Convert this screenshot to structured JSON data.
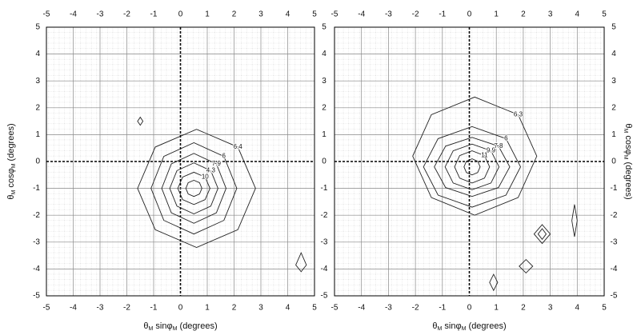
{
  "chart_data": [
    {
      "type": "contour",
      "xlim": [
        -5,
        5
      ],
      "ylim": [
        -5,
        5
      ],
      "xticks": [
        -5,
        -4,
        -3,
        -2,
        -1,
        0,
        1,
        2,
        3,
        4,
        5
      ],
      "yticks": [
        -5,
        -4,
        -3,
        -2,
        -1,
        0,
        1,
        2,
        3,
        4,
        5
      ],
      "x_label": [
        "θ",
        "M",
        " sinφ",
        "M",
        " (degrees)"
      ],
      "y_label": [
        "θ",
        "M",
        " cosφ",
        "M",
        " (degrees)"
      ],
      "grid": true,
      "color": "#222222",
      "contours": [
        {
          "x": [
            0.8,
            0.71,
            0.5,
            0.29,
            0.2,
            0.29,
            0.5,
            0.71
          ],
          "y": [
            -1,
            -0.79,
            -0.7,
            -0.79,
            -1,
            -1.21,
            -1.3,
            -1.21
          ]
        },
        {
          "x": [
            1.1,
            0.92,
            0.5,
            0.08,
            -0.1,
            0.08,
            0.5,
            0.92
          ],
          "y": [
            -1,
            -0.58,
            -0.4,
            -0.58,
            -1,
            -1.42,
            -1.6,
            -1.42
          ],
          "level": 10
        },
        {
          "x": [
            1.4,
            1.13,
            0.5,
            -0.13,
            -0.4,
            -0.13,
            0.5,
            1.13
          ],
          "y": [
            -1,
            -0.34,
            -0.05,
            -0.34,
            -1,
            -1.66,
            -1.95,
            -1.66
          ],
          "level": 4.3
        },
        {
          "x": [
            1.7,
            1.34,
            0.5,
            -0.34,
            -0.7,
            -0.34,
            0.5,
            1.34
          ],
          "y": [
            -1,
            -0.09,
            0.3,
            -0.09,
            -1,
            -1.91,
            -2.3,
            -1.91
          ],
          "level": 7.9
        },
        {
          "x": [
            2.1,
            1.62,
            0.5,
            -0.62,
            -1.1,
            -0.62,
            0.5,
            1.62
          ],
          "y": [
            -1,
            0.19,
            0.7,
            0.19,
            -1,
            -2.19,
            -2.7,
            -2.19
          ],
          "level": 6.0
        },
        {
          "x": [
            2.8,
            2.14,
            0.6,
            -0.94,
            -1.6,
            -0.94,
            0.6,
            2.14
          ],
          "y": [
            -1,
            0.54,
            1.2,
            0.54,
            -1,
            -2.54,
            -3.2,
            -2.54
          ],
          "level": 6.4
        },
        {
          "x": [
            -1.6,
            -1.5,
            -1.4,
            -1.5
          ],
          "y": [
            1.5,
            1.65,
            1.5,
            1.35
          ]
        },
        {
          "x": [
            4.3,
            4.5,
            4.7,
            4.5
          ],
          "y": [
            -3.85,
            -3.4,
            -3.85,
            -4.1
          ]
        }
      ]
    },
    {
      "type": "contour",
      "xlim": [
        -5,
        5
      ],
      "ylim": [
        -5,
        5
      ],
      "xticks": [
        -5,
        -4,
        -3,
        -2,
        -1,
        0,
        1,
        2,
        3,
        4,
        5
      ],
      "yticks": [
        -5,
        -4,
        -3,
        -2,
        -1,
        0,
        1,
        2,
        3,
        4,
        5
      ],
      "x_label": [
        "θ",
        "M",
        " sinφ",
        "M",
        " (degrees)"
      ],
      "y_label": [
        "θ",
        "M",
        " cosφ",
        "M",
        " (degrees)"
      ],
      "grid": true,
      "color": "#222222",
      "contours": [
        {
          "x": [
            0.4,
            0.31,
            0.1,
            -0.11,
            -0.2,
            -0.11,
            0.1,
            0.31
          ],
          "y": [
            -0.2,
            0.01,
            0.1,
            0.01,
            -0.2,
            -0.41,
            -0.5,
            -0.41
          ]
        },
        {
          "x": [
            0.75,
            0.56,
            0.1,
            -0.36,
            -0.55,
            -0.36,
            0.1,
            0.56
          ],
          "y": [
            -0.2,
            0.22,
            0.4,
            0.22,
            -0.2,
            -0.62,
            -0.8,
            -0.62
          ],
          "level": 11
        },
        {
          "x": [
            1.1,
            0.8,
            0.1,
            -0.6,
            -0.9,
            -0.6,
            0.1,
            0.8
          ],
          "y": [
            -0.2,
            0.4,
            0.65,
            0.4,
            -0.2,
            -0.8,
            -1.05,
            -0.8
          ],
          "level": 9.9
        },
        {
          "x": [
            1.5,
            1.08,
            0.1,
            -0.88,
            -1.3,
            -0.88,
            0.1,
            1.08
          ],
          "y": [
            -0.2,
            0.57,
            0.9,
            0.57,
            -0.2,
            -0.97,
            -1.3,
            -0.97
          ],
          "level": 7.8
        },
        {
          "x": [
            1.9,
            1.36,
            0.1,
            -1.16,
            -1.7,
            -1.16,
            0.1,
            1.36
          ],
          "y": [
            -0.2,
            0.85,
            1.3,
            0.85,
            -0.2,
            -1.25,
            -1.7,
            -1.25
          ],
          "level": 6.0
        },
        {
          "x": [
            2.5,
            1.81,
            0.2,
            -1.41,
            -2.1,
            -1.41,
            0.2,
            1.81
          ],
          "y": [
            0.2,
            1.74,
            2.4,
            1.74,
            0.2,
            -1.34,
            -2.0,
            -1.34
          ],
          "level": 6.3
        },
        {
          "x": [
            2.4,
            2.7,
            3.0,
            2.7
          ],
          "y": [
            -2.7,
            -2.35,
            -2.7,
            -3.05
          ]
        },
        {
          "x": [
            2.55,
            2.7,
            2.85,
            2.7
          ],
          "y": [
            -2.7,
            -2.5,
            -2.7,
            -2.9
          ]
        },
        {
          "x": [
            1.85,
            2.1,
            2.35,
            2.1
          ],
          "y": [
            -3.9,
            -3.65,
            -3.9,
            -4.15
          ]
        },
        {
          "x": [
            0.75,
            0.9,
            1.05,
            0.9
          ],
          "y": [
            -4.5,
            -4.2,
            -4.5,
            -4.8
          ]
        },
        {
          "x": [
            3.8,
            3.9,
            4.0,
            3.9
          ],
          "y": [
            -2.2,
            -1.6,
            -2.2,
            -2.8
          ]
        }
      ]
    }
  ]
}
